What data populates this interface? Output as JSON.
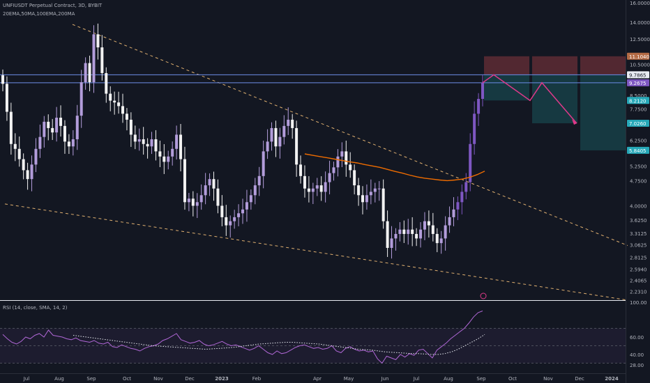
{
  "header": {
    "symbol_line": "UNFIUSDT Perpetual Contract, 3D, BYBIT",
    "indicators_line": "20EMA,50MA,100EMA,200MA",
    "rsi_label": "RSI (14, close, SMA, 14, 2)"
  },
  "colors": {
    "background": "#131722",
    "up": "#b39ddb",
    "up_strong": "#7e57c2",
    "down": "#f2f2f2",
    "ema": "#ef6c00",
    "trendline": "#e0b070",
    "horizontal": "#6e8ee8",
    "zigzag": "#e0398a",
    "rsi": "#b067d6",
    "stop_zone": "#5a2a33",
    "target_zone": "#173d45"
  },
  "chart_data": [
    {
      "type": "candlestick",
      "price_scale": "log",
      "ylim": [
        2.1,
        16.0
      ],
      "y_ticks": [
        "16.0000",
        "14.0000",
        "12.5000",
        "10.5000",
        "8.5000",
        "7.7500",
        "6.2500",
        "5.2500",
        "4.7500",
        "4.0000",
        "3.6250",
        "3.3125",
        "3.0625",
        "2.8125",
        "2.5940",
        "2.4065",
        "2.2310"
      ],
      "x_ticks": [
        "Jul",
        "Aug",
        "Sep",
        "Oct",
        "Nov",
        "Dec",
        "2023",
        "Feb",
        "Apr",
        "May",
        "Jun",
        "Jul",
        "Aug",
        "Sep",
        "Oct",
        "Nov",
        "Dec",
        "2024"
      ],
      "price_labels": [
        {
          "value": 11.104,
          "text": "11.1040",
          "color": "#b36b45"
        },
        {
          "value": 9.7865,
          "text": "9.7865",
          "color": "#e9ecf2"
        },
        {
          "value": 9.2675,
          "text": "9.2675",
          "color": "#7e57c2"
        },
        {
          "value": 8.212,
          "text": "8.2120",
          "color": "#26a8b8"
        },
        {
          "value": 7.026,
          "text": "7.0260",
          "color": "#26a8b8"
        },
        {
          "value": 5.8405,
          "text": "5.8405",
          "color": "#26a8b8"
        }
      ],
      "horizontal_lines": [
        9.7865,
        9.2675
      ],
      "trendlines": [
        {
          "from": [
            "Aug",
            13.8
          ],
          "to": [
            "2024",
            3.05
          ]
        },
        {
          "from": [
            "Jul",
            4.05
          ],
          "to": [
            "2024",
            2.1
          ]
        }
      ],
      "closes": [
        9.2,
        7.6,
        6.1,
        5.9,
        5.5,
        5.1,
        4.8,
        5.3,
        5.9,
        6.4,
        7.1,
        6.8,
        6.6,
        7.3,
        6.9,
        6.2,
        6.0,
        6.3,
        7.4,
        9.3,
        10.6,
        9.3,
        12.9,
        11.8,
        9.9,
        8.6,
        8.2,
        8.1,
        7.9,
        7.5,
        7.2,
        6.5,
        6.2,
        6.3,
        6.1,
        6.0,
        6.3,
        5.8,
        5.6,
        5.4,
        5.6,
        5.9,
        6.5,
        5.5,
        4.1,
        4.2,
        4.0,
        4.1,
        4.3,
        4.6,
        4.8,
        4.5,
        4.0,
        3.7,
        3.5,
        3.6,
        3.7,
        3.8,
        3.9,
        4.1,
        4.3,
        4.6,
        4.9,
        5.8,
        6.2,
        6.8,
        6.0,
        6.4,
        6.9,
        7.2,
        6.8,
        5.3,
        4.9,
        4.5,
        4.4,
        4.5,
        4.6,
        4.4,
        4.7,
        5.0,
        5.2,
        5.6,
        5.8,
        5.3,
        5.1,
        4.6,
        4.3,
        4.1,
        4.3,
        4.4,
        4.5,
        4.5,
        3.6,
        3.0,
        3.2,
        3.3,
        3.4,
        3.3,
        3.4,
        3.3,
        3.2,
        3.4,
        3.6,
        3.5,
        3.3,
        3.1,
        3.2,
        3.5,
        3.7,
        3.9,
        4.1,
        4.4,
        4.7,
        6.1,
        7.5,
        8.3,
        9.27
      ],
      "ema_100": [
        5.7,
        5.65,
        5.6,
        5.55,
        5.5,
        5.45,
        5.4,
        5.36,
        5.3,
        5.25,
        5.2,
        5.13,
        5.06,
        5.0,
        4.93,
        4.87,
        4.83,
        4.8,
        4.77,
        4.75,
        4.77,
        4.8,
        4.86,
        4.95,
        5.07
      ],
      "projection": [
        [
          9.2675,
          "Sep"
        ],
        [
          9.7865,
          "Sep"
        ],
        [
          8.212,
          "Oct"
        ],
        [
          9.2675,
          "Nov"
        ],
        [
          7.026,
          "Dec"
        ]
      ],
      "stop_zone": {
        "top": 11.104,
        "bottom": 9.7865
      },
      "targets": [
        8.212,
        7.026,
        5.8405
      ]
    },
    {
      "type": "line",
      "name": "RSI",
      "ylim": [
        20,
        100
      ],
      "y_ticks": [
        "100.00",
        "60.00",
        "40.00",
        "28.00"
      ],
      "values": [
        63,
        58,
        54,
        52,
        55,
        60,
        58,
        62,
        64,
        60,
        68,
        62,
        61,
        60,
        58,
        57,
        59,
        56,
        55,
        54,
        56,
        53,
        52,
        54,
        49,
        48,
        51,
        49,
        47,
        46,
        44,
        47,
        49,
        50,
        52,
        56,
        58,
        61,
        64,
        57,
        55,
        53,
        54,
        56,
        52,
        50,
        51,
        53,
        55,
        52,
        50,
        51,
        49,
        47,
        45,
        47,
        50,
        46,
        42,
        40,
        44,
        41,
        42,
        45,
        48,
        50,
        51,
        49,
        47,
        48,
        46,
        47,
        50,
        44,
        42,
        47,
        49,
        46,
        44,
        45,
        43,
        44,
        35,
        30,
        38,
        36,
        34,
        40,
        37,
        41,
        39,
        45,
        46,
        41,
        36,
        45,
        49,
        53,
        58,
        62,
        66,
        70,
        76,
        83,
        88,
        90
      ],
      "ma_values": [
        62,
        61,
        60,
        59,
        58,
        57,
        56,
        55,
        54,
        53,
        52,
        51,
        50,
        49.5,
        49,
        48.5,
        48,
        47.5,
        47,
        46.5,
        46,
        46.5,
        47,
        47.5,
        48,
        49,
        50,
        51,
        52,
        52.5,
        53,
        53.5,
        54,
        54,
        53.5,
        53,
        52.5,
        52,
        51,
        50,
        49,
        48,
        47,
        46,
        45.5,
        45,
        44,
        43,
        42.5,
        42,
        41.5,
        41,
        41,
        40.5,
        40,
        40,
        41,
        43,
        46,
        50,
        54,
        58,
        63
      ]
    }
  ]
}
